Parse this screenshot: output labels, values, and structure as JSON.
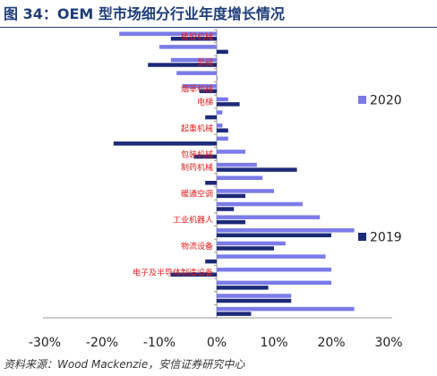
{
  "title": "图 34：OEM 型市场细分行业年度增长情况",
  "source": "资料来源：Wood Mackenzie，安信证券研究中心",
  "chart_data": {
    "type": "bar",
    "orientation": "horizontal",
    "title": "",
    "xlabel": "",
    "ylabel": "",
    "xlim": [
      -0.3,
      0.3
    ],
    "x_ticks": [
      -0.3,
      -0.2,
      -0.1,
      0.0,
      0.1,
      0.2,
      0.3
    ],
    "x_tick_labels": [
      "-30%",
      "-20%",
      "-10%",
      "0%",
      "10%",
      "20%",
      "30%"
    ],
    "grid": false,
    "legend": {
      "position": "right"
    },
    "category_count": 22,
    "labeled_rows": [
      {
        "row": 0,
        "label": "橡胶机械"
      },
      {
        "row": 2,
        "label": "泵阀"
      },
      {
        "row": 4,
        "label": "烟草机械"
      },
      {
        "row": 5,
        "label": "电梯"
      },
      {
        "row": 7,
        "label": "起重机械"
      },
      {
        "row": 9,
        "label": "包装机械"
      },
      {
        "row": 10,
        "label": "制药机械"
      },
      {
        "row": 12,
        "label": "暖通空调"
      },
      {
        "row": 14,
        "label": "工业机器人"
      },
      {
        "row": 16,
        "label": "物流设备"
      },
      {
        "row": 18,
        "label": "电子及半导体制造设备"
      }
    ],
    "series": [
      {
        "name": "2020",
        "color": "#7b7be8",
        "values": [
          -0.17,
          -0.1,
          -0.08,
          -0.07,
          -0.06,
          0.02,
          0.01,
          0.01,
          0.02,
          0.05,
          0.07,
          0.08,
          0.1,
          0.15,
          0.18,
          0.24,
          0.12,
          0.19,
          0.2,
          0.2,
          0.13,
          0.24
        ]
      },
      {
        "name": "2019",
        "color": "#1c2a78",
        "values": [
          -0.08,
          0.02,
          -0.12,
          0.0,
          -0.03,
          0.04,
          -0.02,
          0.02,
          -0.18,
          -0.04,
          0.14,
          -0.02,
          0.05,
          0.03,
          0.05,
          0.2,
          0.1,
          -0.02,
          -0.08,
          0.09,
          0.13,
          0.06
        ]
      }
    ]
  }
}
